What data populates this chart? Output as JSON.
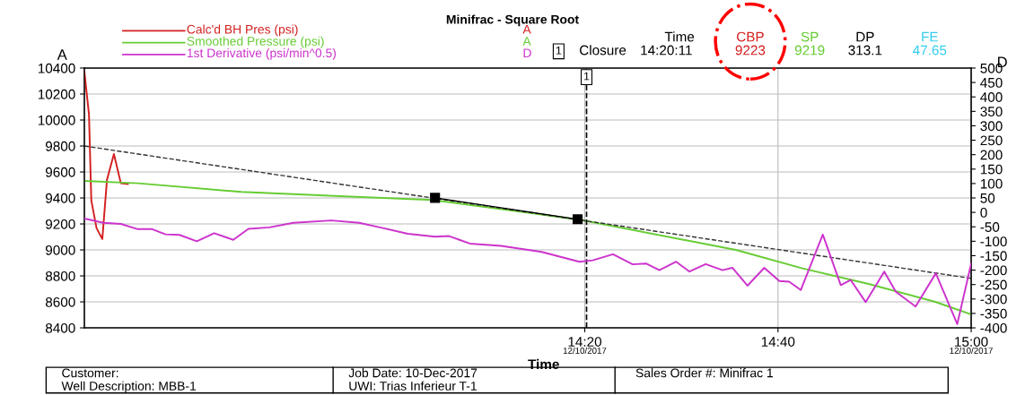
{
  "chart_data": {
    "type": "line",
    "title": "Minifrac - Square Root",
    "xlabel": "Time",
    "ylabel": "A",
    "y2label": "D",
    "xlim": [
      13.47,
      15.0
    ],
    "xticks": [
      {
        "value": 14.3333,
        "label": "14:20"
      },
      {
        "value": 14.6667,
        "label": "14:40"
      },
      {
        "value": 15.0,
        "label": "15:00"
      }
    ],
    "ylim": [
      8400,
      10400
    ],
    "yticks": [
      8400,
      8600,
      8800,
      9000,
      9200,
      9400,
      9600,
      9800,
      10000,
      10200,
      10400
    ],
    "y2lim": [
      -400,
      500
    ],
    "y2ticks": [
      -400,
      -350,
      -300,
      -250,
      -200,
      -150,
      -100,
      -50,
      0,
      50,
      100,
      150,
      200,
      250,
      300,
      350,
      400,
      450,
      500
    ],
    "grid": true,
    "legend": "top left",
    "marker": "none",
    "line_style": "solid",
    "series": [
      {
        "name": "Calc'd BH Pres (psi)",
        "color": "#d42020",
        "x": [
          13.47,
          13.478,
          13.482,
          13.491,
          13.501,
          13.509,
          13.521,
          13.533,
          13.545
        ],
        "values": [
          10374,
          10042,
          9380,
          9168,
          9084,
          9539,
          9738,
          9513,
          9507
        ]
      },
      {
        "name": "Smoothed Pressure (psi)",
        "color": "#66cc33",
        "x": [
          13.47,
          13.563,
          13.741,
          13.92,
          14.07,
          14.242,
          14.33,
          14.594,
          14.709,
          14.823,
          14.938,
          15.0
        ],
        "values": [
          9531,
          9513,
          9446,
          9412,
          9385,
          9283,
          9228,
          9000,
          8858,
          8738,
          8600,
          8503
        ]
      },
      {
        "name": "1st Derivative (psi/min^0.5)",
        "color": "#cc33cc",
        "axis": "y2",
        "x": [
          13.47,
          13.503,
          13.533,
          13.562,
          13.587,
          13.61,
          13.634,
          13.664,
          13.694,
          13.727,
          13.753,
          13.789,
          13.831,
          13.896,
          13.944,
          13.98,
          14.028,
          14.075,
          14.099,
          14.135,
          14.189,
          14.259,
          14.324,
          14.347,
          14.382,
          14.416,
          14.439,
          14.462,
          14.491,
          14.514,
          14.542,
          14.571,
          14.588,
          14.614,
          14.643,
          14.669,
          14.686,
          14.706,
          14.744,
          14.775,
          14.792,
          14.818,
          14.85,
          14.87,
          14.904,
          14.939,
          14.976,
          15.0
        ],
        "values": [
          -21,
          -36,
          -40,
          -58,
          -58,
          -76,
          -78,
          -100,
          -72,
          -95,
          -57,
          -52,
          -36,
          -28,
          -36,
          -52,
          -74,
          -84,
          -82,
          -108,
          -116,
          -137,
          -171,
          -166,
          -145,
          -180,
          -177,
          -200,
          -171,
          -205,
          -179,
          -200,
          -192,
          -254,
          -192,
          -238,
          -240,
          -269,
          -77,
          -252,
          -234,
          -311,
          -205,
          -275,
          -326,
          -211,
          -387,
          -177
        ]
      },
      {
        "type": "line",
        "color": "#333333",
        "line_style": "dashed",
        "x": [
          13.47,
          15.0
        ],
        "values": [
          9800,
          8781
        ]
      },
      {
        "type": "line",
        "color": "#000000",
        "marker": "square",
        "x": [
          14.075,
          14.321
        ],
        "values": [
          9401,
          9236
        ]
      }
    ],
    "ref_lines": [
      {
        "axis": "x",
        "value": 14.3364,
        "color": "#000000",
        "line_style": "dashed"
      }
    ],
    "annotations": [
      "Time",
      "CBP",
      "SP",
      "DP",
      "FE",
      "1",
      "Closure",
      "14:20:11",
      "9223",
      "9219",
      "313.1",
      "47.65",
      "Customer:",
      "Job Date: 10-Dec-2017",
      "Sales Order #: Minifrac 1",
      "Well Description: MBB-1",
      "UWI: Trias Inferieur T-1",
      "12/10/2017",
      "12/10/2017",
      "1"
    ]
  }
}
